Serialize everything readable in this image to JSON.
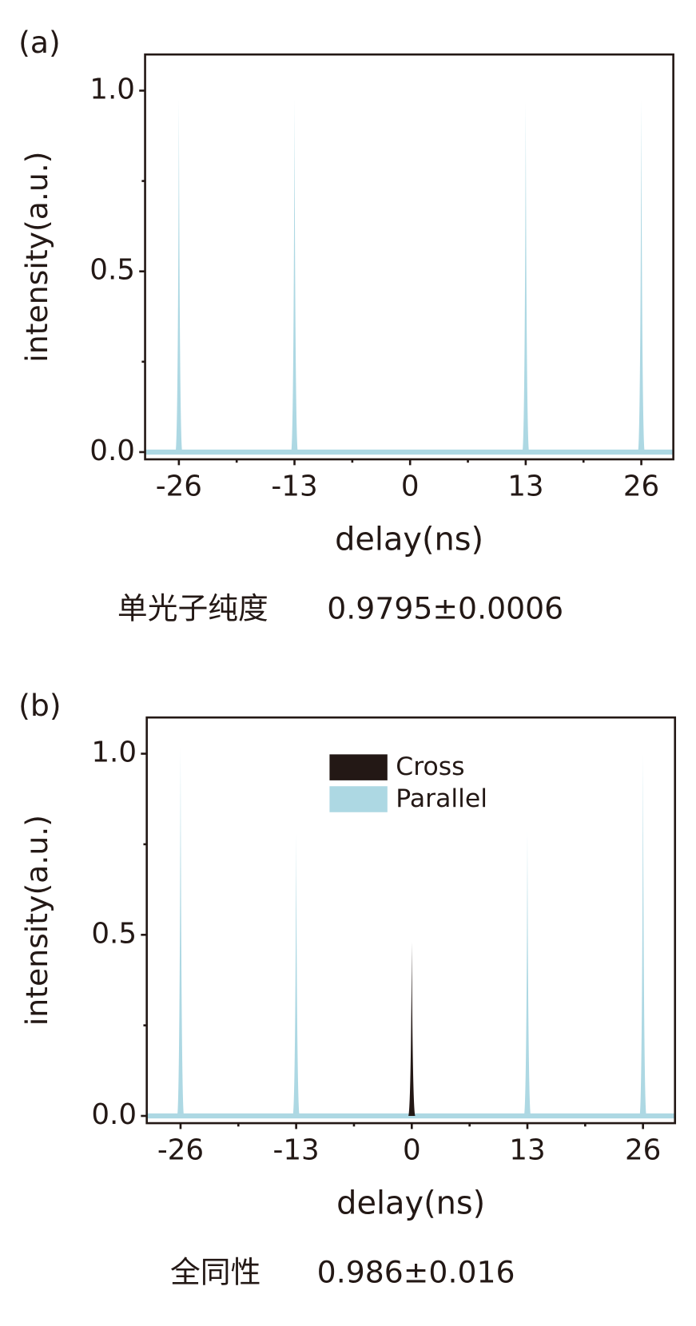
{
  "chart_data": [
    {
      "type": "peaks",
      "panel_label": "(a)",
      "ylabel": "intensity(a.u.)",
      "xlabel": "delay(ns)",
      "xlim": [
        -29.8,
        29.6
      ],
      "xticks": [
        -26,
        -13,
        0,
        13,
        26
      ],
      "xminor": [
        -19.5,
        -6.5,
        6.5,
        19.5
      ],
      "ylim": [
        -0.02,
        1.1
      ],
      "yticks": [
        {
          "value": 0,
          "label": "0.0"
        },
        {
          "value": 0.5,
          "label": "0.5"
        },
        {
          "value": 1,
          "label": "1.0"
        }
      ],
      "yminor": [
        0.25,
        0.75
      ],
      "series": [
        {
          "color": "#add8e3",
          "x": [
            -26,
            -13,
            13,
            26
          ],
          "values": [
            0.98,
            0.98,
            0.97,
            0.98
          ]
        }
      ],
      "annotation": {
        "label": "单光子纯度",
        "value": "0.9795±0.0006"
      }
    },
    {
      "type": "peaks",
      "panel_label": "(b)",
      "ylabel": "intensity(a.u.)",
      "xlabel": "delay(ns)",
      "xlim": [
        -29.8,
        29.6
      ],
      "xticks": [
        -26,
        -13,
        0,
        13,
        26
      ],
      "xminor": [
        -19.5,
        -6.5,
        6.5,
        19.5
      ],
      "ylim": [
        -0.02,
        1.1
      ],
      "yticks": [
        {
          "value": 0,
          "label": "0.0"
        },
        {
          "value": 0.5,
          "label": "0.5"
        },
        {
          "value": 1,
          "label": "1.0"
        }
      ],
      "yminor": [
        0.25,
        0.75
      ],
      "series": [
        {
          "name": "Cross",
          "color": "#231815",
          "x": [
            0
          ],
          "values": [
            0.48
          ]
        },
        {
          "name": "Parallel",
          "color": "#add8e3",
          "x": [
            -26,
            -13,
            13,
            26
          ],
          "values": [
            1.02,
            0.78,
            0.79,
            1.0
          ]
        }
      ],
      "annotation": {
        "label": "全同性",
        "value": "0.986±0.016"
      }
    }
  ]
}
